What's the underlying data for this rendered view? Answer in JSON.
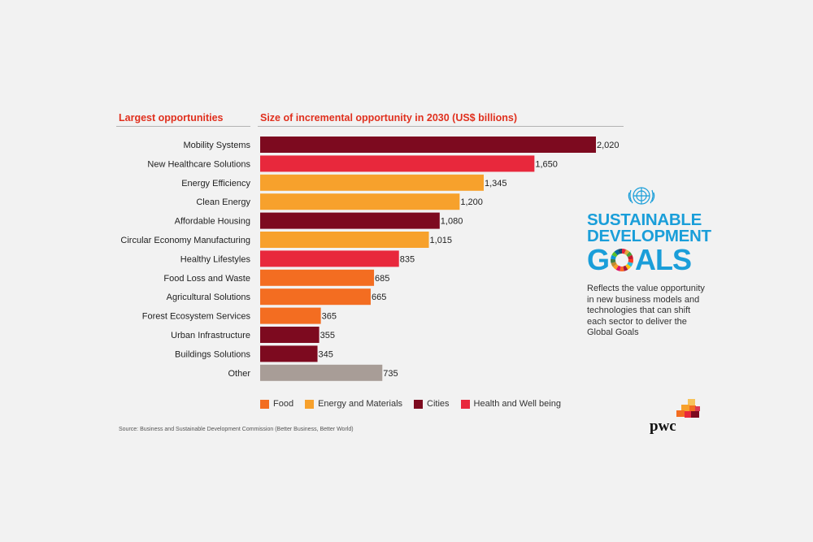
{
  "headers": {
    "left": "Largest opportunities",
    "right": "Size of incremental opportunity in 2030 (US$ billions)"
  },
  "colors": {
    "Food": "#f36d21",
    "Energy and Materials": "#f7a12c",
    "Cities": "#7d0a1f",
    "Health and Well being": "#e8283c",
    "Other": "#a89d97"
  },
  "chart_data": {
    "type": "bar",
    "orientation": "horizontal",
    "categories": [
      "Mobility Systems",
      "New Healthcare Solutions",
      "Energy Efficiency",
      "Clean Energy",
      "Affordable Housing",
      "Circular Economy Manufacturing",
      "Healthy Lifestyles",
      "Food Loss and Waste",
      "Agricultural Solutions",
      "Forest Ecosystem Services",
      "Urban Infrastructure",
      "Buildings Solutions",
      "Other"
    ],
    "values": [
      2020,
      1650,
      1345,
      1200,
      1080,
      1015,
      835,
      685,
      665,
      365,
      355,
      345,
      735
    ],
    "value_labels": [
      "2,020",
      "1,650",
      "1,345",
      "1,200",
      "1,080",
      "1,015",
      "835",
      "685",
      "665",
      "365",
      "355",
      "345",
      "735"
    ],
    "groups": [
      "Cities",
      "Health and Well being",
      "Energy and Materials",
      "Energy and Materials",
      "Cities",
      "Energy and Materials",
      "Health and Well being",
      "Food",
      "Food",
      "Food",
      "Cities",
      "Cities",
      "Other"
    ],
    "xlim": [
      0,
      2020
    ],
    "grid": false,
    "legend_position": "bottom",
    "legend": [
      "Food",
      "Energy and Materials",
      "Cities",
      "Health and Well being"
    ]
  },
  "source": "Source: Business and Sustainable Development Commission (Better Business, Better World)",
  "sdg": {
    "line1": "SUSTAINABLE",
    "line2": "DEVELOPMENT",
    "goals_g": "G",
    "goals_rest": "ALS",
    "description": "Reflects the value opportunity in new business models and technologies that can shift each sector to deliver the Global Goals"
  },
  "brand": {
    "name": "pwc",
    "block_colors": [
      "#f7a12c",
      "#f36d21",
      "#e8283c",
      "#d93954",
      "#7d0a1f",
      "#f7c35a"
    ]
  }
}
